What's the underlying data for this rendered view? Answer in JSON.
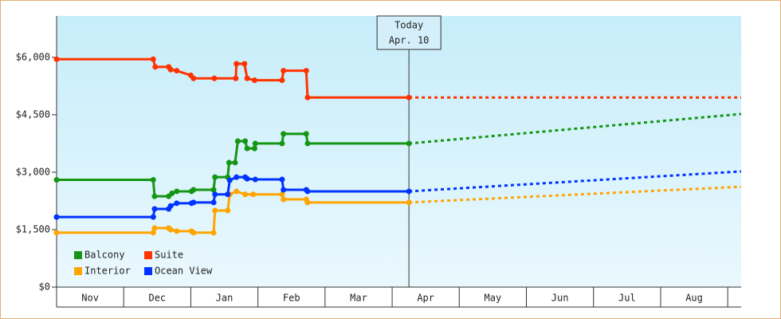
{
  "chart_data": {
    "type": "line",
    "categories": [
      "Nov",
      "Dec",
      "Jan",
      "Feb",
      "Mar",
      "Apr",
      "May",
      "Jun",
      "Jul",
      "Aug"
    ],
    "xlim": [
      0,
      10.2
    ],
    "xticks": [
      0,
      1,
      2,
      3,
      4,
      5,
      6,
      7,
      8,
      9,
      10
    ],
    "ylim": [
      0,
      7080
    ],
    "yticks": [
      {
        "value": 0,
        "label": "$0"
      },
      {
        "value": 1500,
        "label": "$1,500"
      },
      {
        "value": 3000,
        "label": "$3,000"
      },
      {
        "value": 4500,
        "label": "$4,500"
      },
      {
        "value": 6000,
        "label": "$6,000"
      }
    ],
    "legend": "bottom-left",
    "annotation": {
      "x": 5.25,
      "lines": [
        "Today",
        "Apr. 10"
      ]
    },
    "series": [
      {
        "name": "Balcony",
        "color": "#149614",
        "x": [
          0,
          1.44,
          1.46,
          1.67,
          1.72,
          1.79,
          2.01,
          2.04,
          2.34,
          2.36,
          2.55,
          2.57,
          2.66,
          2.7,
          2.81,
          2.84,
          2.95,
          2.96,
          3.36,
          3.38,
          3.72,
          3.74,
          5.25
        ],
        "values": [
          2800,
          2800,
          2370,
          2370,
          2450,
          2500,
          2500,
          2540,
          2540,
          2870,
          2870,
          3250,
          3250,
          3810,
          3810,
          3620,
          3620,
          3750,
          3750,
          4000,
          4000,
          3750,
          3750
        ],
        "forecast_x": [
          5.25,
          10.2
        ],
        "forecast_values": [
          3750,
          4520
        ]
      },
      {
        "name": "Suite",
        "color": "#ff3300",
        "x": [
          0,
          1.44,
          1.47,
          1.67,
          1.7,
          1.79,
          2.0,
          2.04,
          2.35,
          2.67,
          2.68,
          2.8,
          2.84,
          2.95,
          3.36,
          3.38,
          3.72,
          3.74,
          5.25
        ],
        "values": [
          5950,
          5950,
          5750,
          5750,
          5680,
          5650,
          5530,
          5450,
          5450,
          5450,
          5830,
          5830,
          5450,
          5400,
          5400,
          5650,
          5650,
          4950,
          4950
        ],
        "forecast_x": [
          5.25,
          10.2
        ],
        "forecast_values": [
          4950,
          4950
        ]
      },
      {
        "name": "Interior",
        "color": "#ffa500",
        "x": [
          0,
          1.44,
          1.46,
          1.67,
          1.7,
          1.79,
          2.01,
          2.04,
          2.34,
          2.36,
          2.55,
          2.58,
          2.68,
          2.81,
          2.93,
          3.36,
          3.38,
          3.72,
          3.74,
          5.25
        ],
        "values": [
          1420,
          1420,
          1540,
          1540,
          1500,
          1460,
          1460,
          1420,
          1420,
          2000,
          2000,
          2420,
          2500,
          2420,
          2420,
          2420,
          2290,
          2290,
          2210,
          2210
        ],
        "forecast_x": [
          5.25,
          10.2
        ],
        "forecast_values": [
          2210,
          2620
        ]
      },
      {
        "name": "Ocean View",
        "color": "#0033ff",
        "x": [
          0,
          1.44,
          1.46,
          1.67,
          1.7,
          1.79,
          2.01,
          2.04,
          2.34,
          2.36,
          2.55,
          2.58,
          2.68,
          2.81,
          2.84,
          2.96,
          3.36,
          3.38,
          3.72,
          3.74,
          5.25
        ],
        "values": [
          1830,
          1830,
          2040,
          2040,
          2120,
          2190,
          2190,
          2210,
          2210,
          2420,
          2420,
          2790,
          2870,
          2870,
          2830,
          2810,
          2810,
          2540,
          2540,
          2500,
          2500
        ],
        "forecast_x": [
          5.25,
          10.2
        ],
        "forecast_values": [
          2500,
          3020
        ]
      }
    ]
  }
}
